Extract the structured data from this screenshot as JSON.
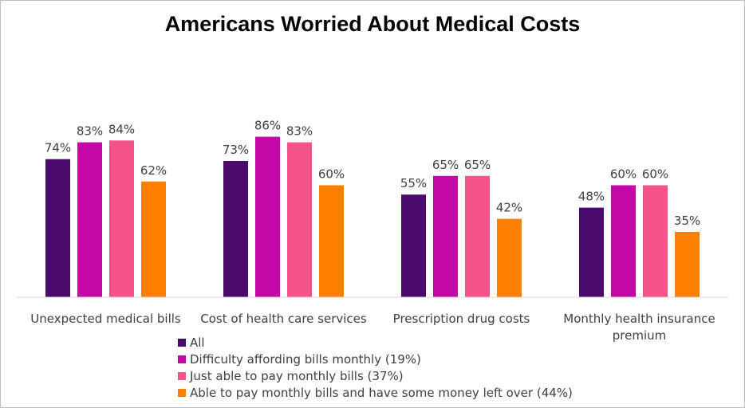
{
  "chart_data": {
    "type": "bar",
    "title": "Americans Worried About Medical Costs",
    "xlabel": "",
    "ylabel": "",
    "ylim": [
      0,
      100
    ],
    "grid": false,
    "legend_position": "bottom",
    "categories": [
      [
        "Unexpected medical bills"
      ],
      [
        "Cost of health care services"
      ],
      [
        "Prescription drug costs"
      ],
      [
        "Monthly health insurance",
        "premium"
      ]
    ],
    "series": [
      {
        "name": "All",
        "color": "#4a0a6b",
        "values": [
          74,
          73,
          55,
          48
        ]
      },
      {
        "name": "Difficulty affording bills monthly (19%)",
        "color": "#c408a8",
        "values": [
          83,
          86,
          65,
          60
        ]
      },
      {
        "name": "Just able to pay monthly bills (37%)",
        "color": "#f5538a",
        "values": [
          84,
          83,
          65,
          60
        ]
      },
      {
        "name": "Able to pay monthly bills and have some money left over (44%)",
        "color": "#ff8000",
        "values": [
          62,
          60,
          42,
          35
        ]
      }
    ],
    "value_suffix": "%"
  }
}
